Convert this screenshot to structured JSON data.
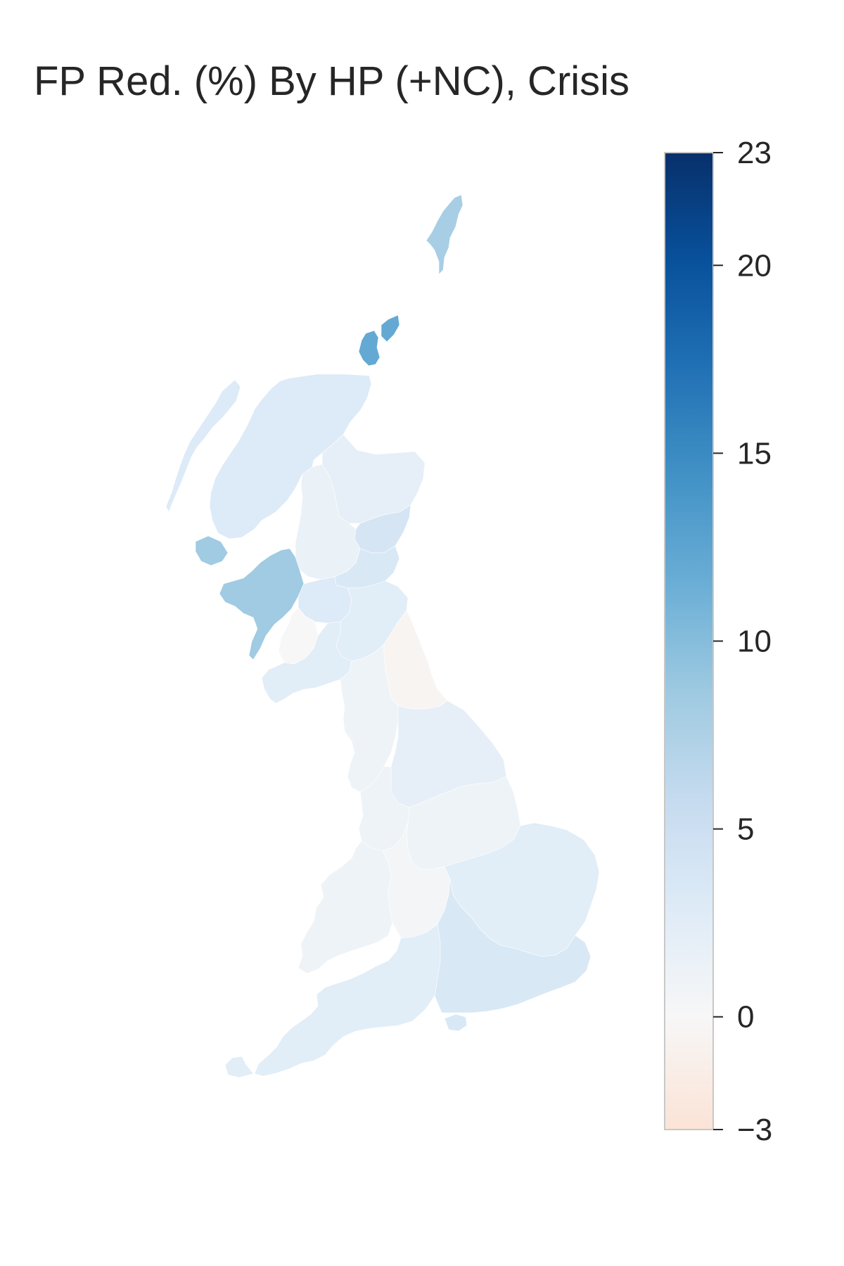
{
  "title": "FP Red. (%) By HP (+NC), Crisis",
  "colorbar": {
    "min": -3,
    "max": 23,
    "ticks": [
      {
        "value": 23,
        "label": "23"
      },
      {
        "value": 20,
        "label": "20"
      },
      {
        "value": 15,
        "label": "15"
      },
      {
        "value": 10,
        "label": "10"
      },
      {
        "value": 5,
        "label": "5"
      },
      {
        "value": 0,
        "label": "0"
      },
      {
        "value": -3,
        "label": "−3"
      }
    ],
    "colors": [
      "#fbe3d6",
      "#f7f7f7",
      "#deebf7",
      "#c6dbef",
      "#9ecae1",
      "#6baed6",
      "#4292c6",
      "#2171b5",
      "#08519c",
      "#08306b"
    ]
  },
  "regions": [
    {
      "name": "Shetland",
      "value": 8
    },
    {
      "name": "Orkney",
      "value": 12
    },
    {
      "name": "Highland",
      "value": 3
    },
    {
      "name": "Western Isles",
      "value": 3
    },
    {
      "name": "North East Scotland",
      "value": 2
    },
    {
      "name": "Angus & Dundee",
      "value": 4
    },
    {
      "name": "Perth & Stirling",
      "value": 1.5
    },
    {
      "name": "Fife & Edinburgh",
      "value": 3.5
    },
    {
      "name": "Argyll & Bute",
      "value": 8.5
    },
    {
      "name": "Glasgow & Clyde",
      "value": 3
    },
    {
      "name": "Ayrshire",
      "value": 0
    },
    {
      "name": "Borders & Lothian",
      "value": 2.5
    },
    {
      "name": "Dumfries & Galloway",
      "value": 2.5
    },
    {
      "name": "North East England",
      "value": -0.5
    },
    {
      "name": "Cumbria & Lancashire",
      "value": 1
    },
    {
      "name": "Yorkshire",
      "value": 2
    },
    {
      "name": "North West Midlands",
      "value": 1
    },
    {
      "name": "East Midlands",
      "value": 1
    },
    {
      "name": "Wales",
      "value": 1
    },
    {
      "name": "West Midlands",
      "value": 0.5
    },
    {
      "name": "East of England",
      "value": 2.5
    },
    {
      "name": "South West England",
      "value": 2.5
    },
    {
      "name": "South East England",
      "value": 3.5
    },
    {
      "name": "Isle of Wight",
      "value": 3.5
    }
  ]
}
